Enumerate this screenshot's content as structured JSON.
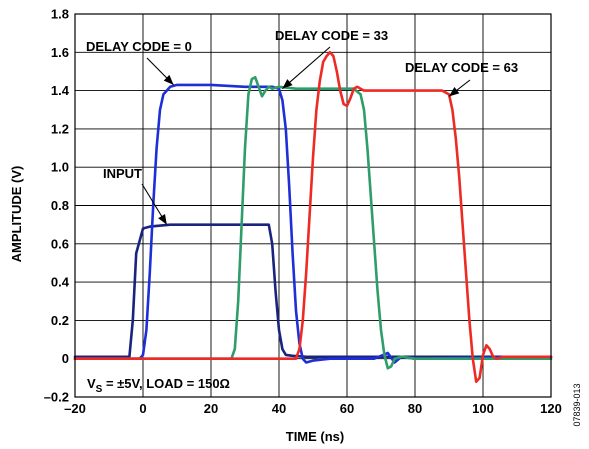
{
  "chart_data": {
    "type": "line",
    "xlabel": "TIME (ns)",
    "ylabel": "AMPLITUDE (V)",
    "xlim": [
      -20,
      120
    ],
    "ylim": [
      -0.2,
      1.8
    ],
    "xticks": [
      -20,
      0,
      20,
      40,
      60,
      80,
      100,
      120
    ],
    "yticks": [
      -0.2,
      0,
      0.2,
      0.4,
      0.6,
      0.8,
      1.0,
      1.2,
      1.4,
      1.6,
      1.8
    ],
    "xtick_labels": [
      "–20",
      "0",
      "20",
      "40",
      "60",
      "80",
      "100",
      "120"
    ],
    "ytick_labels": [
      "–0.2",
      "0",
      "0.2",
      "0.4",
      "0.6",
      "0.8",
      "1.0",
      "1.2",
      "1.4",
      "1.6",
      "1.8"
    ],
    "grid": true,
    "series": [
      {
        "name": "INPUT",
        "color": "#1a237e",
        "x": [
          -20,
          -4,
          -3,
          -2,
          0,
          2,
          8,
          20,
          30,
          37,
          38,
          39,
          40,
          41,
          42,
          44,
          48,
          60,
          120
        ],
        "y": [
          0.01,
          0.01,
          0.2,
          0.55,
          0.68,
          0.69,
          0.7,
          0.7,
          0.7,
          0.7,
          0.6,
          0.35,
          0.15,
          0.05,
          0.02,
          0.015,
          0.01,
          0.01,
          0.01
        ]
      },
      {
        "name": "DELAY CODE = 0",
        "color": "#1f2fd8",
        "x": [
          -20,
          -1,
          0,
          1,
          2,
          3,
          4,
          5,
          6,
          8,
          10,
          15,
          20,
          30,
          38,
          40,
          41,
          42,
          43,
          44,
          45,
          46,
          47,
          48,
          50,
          55,
          60,
          68,
          72,
          74,
          76,
          80,
          120
        ],
        "y": [
          0.0,
          0.0,
          0.02,
          0.15,
          0.45,
          0.8,
          1.1,
          1.3,
          1.38,
          1.42,
          1.43,
          1.43,
          1.43,
          1.42,
          1.42,
          1.41,
          1.35,
          1.2,
          0.9,
          0.55,
          0.25,
          0.08,
          0.0,
          -0.02,
          -0.01,
          0.0,
          0.0,
          0.0,
          0.03,
          -0.02,
          0.01,
          0.0,
          0.01
        ]
      },
      {
        "name": "DELAY CODE = 33",
        "color": "#2e9d6a",
        "x": [
          -20,
          26,
          27,
          28,
          29,
          30,
          31,
          32,
          33,
          34,
          35,
          36,
          37,
          38,
          40,
          45,
          55,
          62,
          64,
          65,
          66,
          67,
          68,
          69,
          70,
          71,
          72,
          73,
          74,
          76,
          80,
          120
        ],
        "y": [
          0.0,
          0.0,
          0.05,
          0.3,
          0.7,
          1.1,
          1.38,
          1.46,
          1.47,
          1.42,
          1.37,
          1.4,
          1.42,
          1.41,
          1.42,
          1.41,
          1.41,
          1.41,
          1.38,
          1.3,
          1.1,
          0.85,
          0.6,
          0.35,
          0.15,
          0.02,
          -0.05,
          -0.04,
          0.0,
          0.01,
          0.0,
          0.0
        ]
      },
      {
        "name": "DELAY CODE = 63",
        "color": "#ee2a24",
        "x": [
          -20,
          20,
          45,
          46,
          47,
          48,
          49,
          50,
          51,
          52,
          53,
          54,
          55,
          56,
          57,
          58,
          59,
          60,
          61,
          62,
          63,
          64,
          65,
          66,
          68,
          70,
          80,
          88,
          90,
          91,
          92,
          93,
          94,
          95,
          96,
          97,
          98,
          99,
          100,
          101,
          102,
          103,
          104,
          106,
          110,
          120
        ],
        "y": [
          0.0,
          0.0,
          0.0,
          0.05,
          0.2,
          0.45,
          0.75,
          1.05,
          1.3,
          1.45,
          1.55,
          1.58,
          1.6,
          1.58,
          1.5,
          1.4,
          1.33,
          1.32,
          1.36,
          1.41,
          1.42,
          1.41,
          1.4,
          1.4,
          1.4,
          1.4,
          1.4,
          1.4,
          1.38,
          1.3,
          1.15,
          0.95,
          0.7,
          0.45,
          0.2,
          0.0,
          -0.12,
          -0.1,
          0.02,
          0.07,
          0.05,
          0.01,
          0.0,
          0.01,
          0.01,
          0.01
        ]
      }
    ],
    "annotations": [
      {
        "text": "DELAY CODE = 0",
        "series": "DELAY CODE = 0",
        "point": [
          9,
          1.43
        ]
      },
      {
        "text": "DELAY CODE = 33",
        "series": "DELAY CODE = 33",
        "point": [
          41,
          1.41
        ]
      },
      {
        "text": "DELAY CODE = 63",
        "series": "DELAY CODE = 63",
        "point": [
          90,
          1.37
        ]
      },
      {
        "text": "INPUT",
        "series": "INPUT",
        "point": [
          7,
          0.7
        ]
      }
    ],
    "conditions": {
      "prefix": "V",
      "subscript": "S",
      "rest": " = ±5V, LOAD = 150Ω"
    },
    "figure_id": "07839-013"
  }
}
